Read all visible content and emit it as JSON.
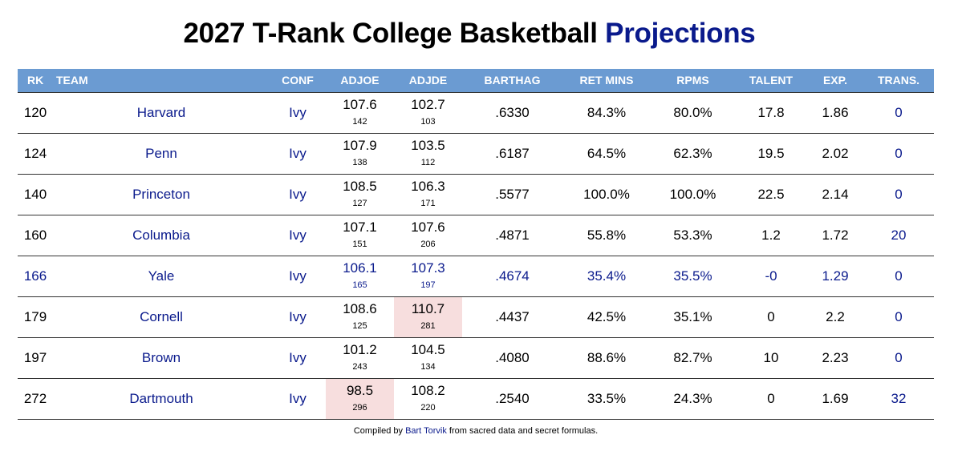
{
  "title": {
    "prefix": "2027 T-Rank College Basketball",
    "accent": "Projections"
  },
  "columns": {
    "rk": "RK",
    "team": "TEAM",
    "conf": "CONF",
    "adjoe": "ADJOE",
    "adjde": "ADJDE",
    "barthag": "BARTHAG",
    "ret_mins": "RET MINS",
    "rpms": "RPMS",
    "talent": "TALENT",
    "exp": "EXP.",
    "trans": "TRANS."
  },
  "rows": [
    {
      "rk": "120",
      "team": "Harvard",
      "conf": "Ivy",
      "adjoe": "107.6",
      "adjoe_rk": "142",
      "adjde": "102.7",
      "adjde_rk": "103",
      "barthag": ".6330",
      "ret_mins": "84.3%",
      "rpms": "80.0%",
      "talent": "17.8",
      "exp": "1.86",
      "trans": "0"
    },
    {
      "rk": "124",
      "team": "Penn",
      "conf": "Ivy",
      "adjoe": "107.9",
      "adjoe_rk": "138",
      "adjde": "103.5",
      "adjde_rk": "112",
      "barthag": ".6187",
      "ret_mins": "64.5%",
      "rpms": "62.3%",
      "talent": "19.5",
      "exp": "2.02",
      "trans": "0"
    },
    {
      "rk": "140",
      "team": "Princeton",
      "conf": "Ivy",
      "adjoe": "108.5",
      "adjoe_rk": "127",
      "adjde": "106.3",
      "adjde_rk": "171",
      "barthag": ".5577",
      "ret_mins": "100.0%",
      "rpms": "100.0%",
      "talent": "22.5",
      "exp": "2.14",
      "trans": "0"
    },
    {
      "rk": "160",
      "team": "Columbia",
      "conf": "Ivy",
      "adjoe": "107.1",
      "adjoe_rk": "151",
      "adjde": "107.6",
      "adjde_rk": "206",
      "barthag": ".4871",
      "ret_mins": "55.8%",
      "rpms": "53.3%",
      "talent": "1.2",
      "exp": "1.72",
      "trans": "20"
    },
    {
      "rk": "166",
      "team": "Yale",
      "conf": "Ivy",
      "adjoe": "106.1",
      "adjoe_rk": "165",
      "adjde": "107.3",
      "adjde_rk": "197",
      "barthag": ".4674",
      "ret_mins": "35.4%",
      "rpms": "35.5%",
      "talent": "-0",
      "exp": "1.29",
      "trans": "0"
    },
    {
      "rk": "179",
      "team": "Cornell",
      "conf": "Ivy",
      "adjoe": "108.6",
      "adjoe_rk": "125",
      "adjde": "110.7",
      "adjde_rk": "281",
      "barthag": ".4437",
      "ret_mins": "42.5%",
      "rpms": "35.1%",
      "talent": "0",
      "exp": "2.2",
      "trans": "0"
    },
    {
      "rk": "197",
      "team": "Brown",
      "conf": "Ivy",
      "adjoe": "101.2",
      "adjoe_rk": "243",
      "adjde": "104.5",
      "adjde_rk": "134",
      "barthag": ".4080",
      "ret_mins": "88.6%",
      "rpms": "82.7%",
      "talent": "10",
      "exp": "2.23",
      "trans": "0"
    },
    {
      "rk": "272",
      "team": "Dartmouth",
      "conf": "Ivy",
      "adjoe": "98.5",
      "adjoe_rk": "296",
      "adjde": "108.2",
      "adjde_rk": "220",
      "barthag": ".2540",
      "ret_mins": "33.5%",
      "rpms": "24.3%",
      "talent": "0",
      "exp": "1.69",
      "trans": "32"
    }
  ],
  "footer": {
    "prefix": "Compiled by",
    "link": "Bart Torvik",
    "suffix": "from sacred data and secret formulas."
  },
  "colors": {
    "header_bg": "#6b9bd2",
    "accent": "#0a1a8c",
    "bad_cell": "#f7dede"
  }
}
